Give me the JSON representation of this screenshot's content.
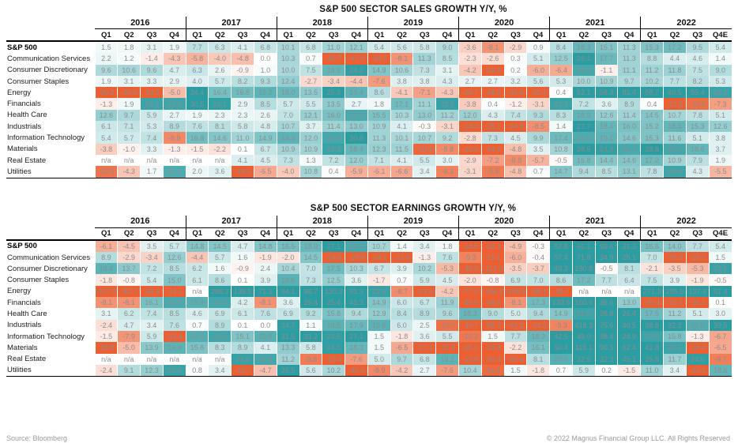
{
  "footer": {
    "source": "Source: Bloomberg",
    "copyright": "© 2022 Magnus Financial Group LLC. All Rights Reserved"
  },
  "colors": {
    "positive_max": "#2a9da2",
    "negative_max": "#ed5f31",
    "cell_text": "#8c8c8c",
    "header_text": "#111111"
  },
  "chart_data": [
    {
      "type": "heatmap",
      "key": "sales",
      "title": "S&P 500 SECTOR SALES GROWTH Y/Y, %",
      "years": [
        "2016",
        "2017",
        "2018",
        "2019",
        "2020",
        "2021",
        "2022"
      ],
      "quarter_labels": [
        "Q1",
        "Q2",
        "Q3",
        "Q4"
      ],
      "last_quarter_label": "Q4E",
      "value_note": "percent growth year-over-year",
      "rows": [
        {
          "label": "S&P 500",
          "bold": true,
          "values": [
            1.5,
            1.8,
            3.1,
            1.9,
            7.7,
            6.3,
            4.1,
            6.8,
            10.1,
            6.8,
            11.0,
            12.1,
            5.4,
            5.6,
            5.8,
            9.0,
            -3.6,
            -8.1,
            -2.9,
            0.9,
            8.4,
            18.3,
            15.1,
            11.3,
            15.3,
            17.2,
            9.5,
            5.4
          ]
        },
        {
          "label": "Communication Services",
          "bold": false,
          "values": [
            2.2,
            1.2,
            -1.4,
            -4.3,
            -5.8,
            -4.0,
            -4.8,
            0.0,
            10.3,
            0.7,
            -40.7,
            -47.4,
            -40.6,
            -8.1,
            11.3,
            8.5,
            -2.3,
            -2.6,
            0.3,
            5.1,
            12.5,
            26.1,
            17.7,
            11.3,
            8.8,
            4.4,
            4.6,
            1.4
          ]
        },
        {
          "label": "Consumer Discretionary",
          "bold": false,
          "values": [
            9.6,
            10.6,
            9.6,
            4.7,
            6.3,
            2.6,
            -0.9,
            1.0,
            10.0,
            7.5,
            18.5,
            24.2,
            14.9,
            10.6,
            7.3,
            3.1,
            -4.2,
            -23.3,
            0.2,
            -6.0,
            -6.4,
            22.2,
            -1.1,
            11.1,
            11.2,
            11.8,
            7.5,
            9.0
          ]
        },
        {
          "label": "Consumer Staples",
          "bold": false,
          "values": [
            1.9,
            3.1,
            3.3,
            2.9,
            4.0,
            5.7,
            8.2,
            9.3,
            12.4,
            -2.7,
            -3.4,
            -4.4,
            -7.6,
            3.8,
            3.8,
            4.3,
            2.7,
            2.7,
            3.2,
            5.6,
            5.3,
            10.0,
            10.9,
            9.7,
            10.2,
            7.7,
            8.2,
            5.3
          ]
        },
        {
          "label": "Energy",
          "bold": false,
          "values": [
            -30.2,
            -25.8,
            -13.2,
            -5.0,
            34.4,
            16.4,
            16.8,
            19.2,
            18.0,
            13.5,
            25.3,
            19.4,
            8.6,
            -4.1,
            -7.1,
            -4.3,
            -18.7,
            -48.0,
            -35.5,
            -32.4,
            0.4,
            62.1,
            58.3,
            81.4,
            58.7,
            60.5,
            55.4,
            23.1
          ]
        },
        {
          "label": "Financials",
          "bold": false,
          "values": [
            -1.3,
            1.9,
            23.1,
            22.6,
            30.5,
            24.1,
            2.9,
            8.5,
            5.7,
            5.5,
            13.5,
            2.7,
            1.8,
            17.1,
            11.1,
            23.8,
            -3.8,
            0.4,
            -1.2,
            -3.1,
            23.3,
            7.2,
            3.6,
            8.9,
            0.4,
            -13.5,
            -10.9,
            -7.3
          ]
        },
        {
          "label": "Health Care",
          "bold": false,
          "values": [
            12.6,
            9.7,
            5.9,
            2.7,
            1.9,
            2.3,
            2.3,
            2.6,
            7.0,
            12.1,
            16.0,
            21.4,
            15.5,
            10.3,
            13.0,
            11.2,
            12.0,
            4.3,
            7.4,
            9.3,
            8.3,
            18.9,
            12.6,
            11.4,
            14.5,
            10.7,
            7.8,
            5.1
          ]
        },
        {
          "label": "Industrials",
          "bold": false,
          "values": [
            6.1,
            7.1,
            5.3,
            8.9,
            7.6,
            8.1,
            5.8,
            4.8,
            10.7,
            3.7,
            11.4,
            13.0,
            10.9,
            4.1,
            -0.3,
            -3.1,
            -14.3,
            -25.1,
            -14.8,
            -8.5,
            1.4,
            27.7,
            18.4,
            16.0,
            15.2,
            18.5,
            15.3,
            12.6
          ]
        },
        {
          "label": "Information Technology",
          "bold": false,
          "values": [
            5.4,
            5.7,
            7.4,
            -8.9,
            16.8,
            14.6,
            11.0,
            14.9,
            19.3,
            12.0,
            21.9,
            30.8,
            11.3,
            10.1,
            10.7,
            9.2,
            -2.8,
            7.3,
            4.5,
            9.9,
            17.4,
            21.0,
            19.1,
            14.6,
            15.3,
            11.6,
            5.1,
            3.8
          ]
        },
        {
          "label": "Materials",
          "bold": false,
          "values": [
            -3.8,
            -1.0,
            3.3,
            -1.3,
            -1.5,
            -2.2,
            0.1,
            6.7,
            10.9,
            10.9,
            23.3,
            18.4,
            12.3,
            11.5,
            -11.4,
            -8.8,
            -12.6,
            -14.2,
            -4.8,
            3.5,
            10.8,
            28.5,
            24.3,
            21.7,
            28.8,
            22.2,
            18.6,
            3.7
          ]
        },
        {
          "label": "Real Estate",
          "bold": false,
          "values": [
            "n/a",
            "n/a",
            "n/a",
            "n/a",
            "n/a",
            "n/a",
            4.1,
            4.5,
            7.3,
            1.3,
            7.2,
            12.0,
            7.1,
            4.1,
            5.5,
            3.0,
            -2.9,
            -7.2,
            -8.8,
            -5.7,
            -0.5,
            16.8,
            14.4,
            14.6,
            17.2,
            10.9,
            7.9,
            1.9
          ]
        },
        {
          "label": "Utilities",
          "bold": false,
          "values": [
            -10.5,
            -4.3,
            1.7,
            21.1,
            2.0,
            3.6,
            -13.5,
            -6.5,
            -4.0,
            10.8,
            0.4,
            -5.9,
            -6.1,
            -6.6,
            3.4,
            -9.3,
            -3.1,
            -9.9,
            -4.8,
            0.7,
            14.7,
            9.4,
            8.5,
            13.1,
            7.8,
            22.9,
            4.3,
            -5.5
          ]
        }
      ]
    },
    {
      "type": "heatmap",
      "key": "earnings",
      "title": "S&P 500 SECTOR EARNINGS GROWTH Y/Y, %",
      "years": [
        "2016",
        "2017",
        "2018",
        "2019",
        "2020",
        "2021",
        "2022"
      ],
      "quarter_labels": [
        "Q1",
        "Q2",
        "Q3",
        "Q4"
      ],
      "last_quarter_label": "Q4E",
      "value_note": "percent growth year-over-year",
      "rows": [
        {
          "label": "S&P 500",
          "bold": true,
          "values": [
            -6.1,
            -4.5,
            3.5,
            5.7,
            14.8,
            14.5,
            4.7,
            14.8,
            16.5,
            18.0,
            27.1,
            21.6,
            10.7,
            1.4,
            3.4,
            1.8,
            -14.6,
            -32.3,
            -4.9,
            -0.3,
            52.8,
            91.1,
            39.6,
            31.3,
            16.6,
            14.0,
            7.7,
            5.4
          ]
        },
        {
          "label": "Communication Services",
          "bold": false,
          "values": [
            8.9,
            -2.9,
            -3.4,
            12.6,
            -4.4,
            5.7,
            1.6,
            -1.9,
            -2.0,
            14.5,
            -24.5,
            -19.8,
            -24.1,
            -12.3,
            -1.3,
            7.6,
            -9.3,
            -15.1,
            -6.0,
            -0.4,
            57.4,
            71.8,
            34.9,
            25.1,
            7.0,
            -20.3,
            -19.2,
            1.5
          ]
        },
        {
          "label": "Consumer Discretionary",
          "bold": false,
          "values": [
            19.4,
            13.7,
            7.2,
            8.5,
            6.2,
            1.6,
            -0.9,
            2.4,
            10.4,
            7.0,
            17.5,
            10.3,
            6.7,
            3.9,
            10.2,
            -5.3,
            -38.3,
            -113.9,
            -3.5,
            -3.7,
            48.3,
            180.8,
            -0.5,
            8.1,
            -2.1,
            -3.5,
            -5.3,
            23.5
          ]
        },
        {
          "label": "Consumer Staples",
          "bold": false,
          "values": [
            -1.8,
            -0.8,
            5.4,
            15.0,
            6.1,
            8.6,
            0.1,
            3.9,
            19.6,
            7.3,
            12.5,
            3.6,
            -1.7,
            0.7,
            5.9,
            4.5,
            -2.0,
            -0.8,
            6.9,
            7.0,
            8.6,
            17.2,
            7.7,
            6.4,
            7.5,
            3.9,
            -1.9,
            -0.5
          ]
        },
        {
          "label": "Energy",
          "bold": false,
          "values": [
            -107.2,
            -82.7,
            -54.6,
            -14.1,
            "n/a",
            286.3,
            135.5,
            71.3,
            94.1,
            98.7,
            120.3,
            91.3,
            23.6,
            -8.7,
            -23.6,
            -4.2,
            -77.2,
            -166.2,
            -108.5,
            -98.1,
            -28.7,
            "n/a",
            "n/a",
            "n/a",
            271.3,
            295.5,
            137.4,
            61.4
          ]
        },
        {
          "label": "Financials",
          "bold": false,
          "values": [
            -8.1,
            -8.1,
            16.1,
            21.5,
            19.9,
            22.3,
            4.2,
            -8.1,
            3.6,
            25.4,
            25.4,
            41.3,
            14.9,
            6.0,
            6.7,
            11.9,
            -25.5,
            -48.5,
            -8.1,
            17.3,
            139.6,
            160.6,
            35.6,
            13.0,
            -20.4,
            -21.1,
            -16.1,
            0.1
          ]
        },
        {
          "label": "Health Care",
          "bold": false,
          "values": [
            3.1,
            6.2,
            7.4,
            8.5,
            4.6,
            6.9,
            6.1,
            7.6,
            6.9,
            9.2,
            15.8,
            9.4,
            12.9,
            8.4,
            8.9,
            9.6,
            18.3,
            9.0,
            5.0,
            9.4,
            14.9,
            22.9,
            28.8,
            26.4,
            17.5,
            11.2,
            5.1,
            3.0
          ]
        },
        {
          "label": "Industrials",
          "bold": false,
          "values": [
            -2.4,
            4.7,
            3.4,
            7.6,
            0.7,
            8.9,
            0.1,
            0.0,
            24.7,
            1.1,
            19.5,
            17.9,
            19.6,
            6.0,
            2.5,
            -10.7,
            -34.7,
            -85.3,
            -63.2,
            -34.2,
            -9.3,
            416.3,
            75.6,
            40.5,
            38.8,
            32.2,
            20.6,
            39.5
          ]
        },
        {
          "label": "Information Technology",
          "bold": false,
          "values": [
            -1.5,
            -7.9,
            5.9,
            -15.4,
            20.5,
            22.5,
            15.1,
            19.8,
            31.5,
            31.2,
            24.5,
            27.1,
            1.5,
            -1.8,
            3.6,
            5.5,
            -10.2,
            1.5,
            7.7,
            18.2,
            42.5,
            49.0,
            38.4,
            24.9,
            23.0,
            15.8,
            -1.3,
            -6.7
          ]
        },
        {
          "label": "Materials",
          "bold": false,
          "values": [
            -18.8,
            -5.0,
            13.9,
            19.4,
            15.6,
            8.3,
            8.9,
            4.1,
            13.3,
            5.8,
            24.5,
            18.3,
            1.5,
            -6.5,
            -17.1,
            -15.5,
            -16.1,
            -16.8,
            -2.2,
            16.1,
            60.4,
            116.1,
            90.5,
            62.4,
            41.8,
            23.1,
            -18.4,
            -6.5
          ]
        },
        {
          "label": "Real Estate",
          "bold": false,
          "values": [
            "n/a",
            "n/a",
            "n/a",
            "n/a",
            "n/a",
            "n/a",
            23.8,
            22.2,
            11.2,
            -9.9,
            -13.4,
            -7.6,
            5.0,
            9.7,
            6.8,
            19.2,
            -12.8,
            -34.4,
            -26.3,
            8.1,
            20.2,
            32.5,
            32.3,
            45.1,
            25.8,
            11.7,
            24.5,
            -9.7
          ]
        },
        {
          "label": "Utilities",
          "bold": false,
          "values": [
            -2.4,
            9.1,
            12.3,
            23.4,
            0.8,
            3.4,
            -13.7,
            -4.7,
            26.5,
            5.6,
            10.2,
            -40.3,
            -8.9,
            -4.2,
            2.7,
            -7.6,
            10.4,
            -11.1,
            1.5,
            -1.8,
            0.7,
            5.9,
            0.2,
            -1.5,
            11.0,
            3.4,
            -24.1,
            18.6
          ]
        }
      ]
    }
  ]
}
